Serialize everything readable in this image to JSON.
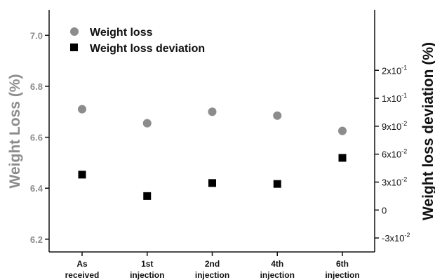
{
  "chart_data": {
    "type": "scatter",
    "categories": [
      [
        "As",
        "received"
      ],
      [
        "1st",
        "injection"
      ],
      [
        "2nd",
        "injection"
      ],
      [
        "4th",
        "injection"
      ],
      [
        "6th",
        "injection"
      ]
    ],
    "ylabel_left": "Weight Loss (%)",
    "ylabel_right": "Weight loss deviation (%)",
    "ylim_left": [
      6.15,
      7.1
    ],
    "ylim_right": [
      -0.045,
      0.215
    ],
    "yticks_left": [
      "6.2",
      "6.4",
      "6.6",
      "6.8",
      "7.0"
    ],
    "yticks_left_values": [
      6.2,
      6.4,
      6.6,
      6.8,
      7.0
    ],
    "yticks_right": [
      {
        "value": -0.03,
        "base": "-3x10",
        "exp": "-2"
      },
      {
        "value": 0,
        "base": "0",
        "exp": ""
      },
      {
        "value": 0.03,
        "base": "3x10",
        "exp": "-2"
      },
      {
        "value": 0.06,
        "base": "6x10",
        "exp": "-2"
      },
      {
        "value": 0.09,
        "base": "9x10",
        "exp": "-2"
      },
      {
        "value": 0.12,
        "base": "1x10",
        "exp": "-1"
      },
      {
        "value": 0.15,
        "base": "2x10",
        "exp": "-1"
      }
    ],
    "legend_position": "top-left",
    "series": [
      {
        "name": "Weight loss",
        "axis": "left",
        "marker": "circle",
        "color": "#8c8c8c",
        "values": [
          6.71,
          6.655,
          6.7,
          6.685,
          6.625
        ]
      },
      {
        "name": "Weight loss deviation",
        "axis": "right",
        "marker": "square",
        "color": "#000000",
        "values": [
          0.038,
          0.015,
          0.029,
          0.028,
          0.056
        ]
      }
    ]
  }
}
